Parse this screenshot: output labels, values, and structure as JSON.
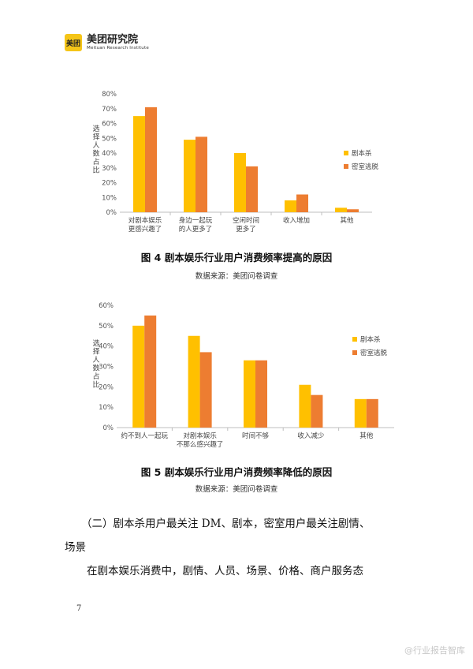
{
  "header": {
    "logo_text": "美团",
    "brand_cn": "美团研究院",
    "brand_en": "Meituan Research Institute"
  },
  "chart_data": [
    {
      "type": "bar",
      "ylabel": "选择人数占比",
      "ylim": [
        0,
        80
      ],
      "y_ticks": [
        "0%",
        "10%",
        "20%",
        "30%",
        "40%",
        "50%",
        "60%",
        "70%",
        "80%"
      ],
      "categories": [
        [
          "对剧本娱乐",
          "更感兴趣了"
        ],
        [
          "身边一起玩",
          "的人更多了"
        ],
        [
          "空闲时间",
          "更多了"
        ],
        [
          "收入增加"
        ],
        [
          "其他"
        ]
      ],
      "series": [
        {
          "name": "剧本杀",
          "color": "#FFC000",
          "values": [
            65,
            49,
            40,
            8,
            3
          ]
        },
        {
          "name": "密室逃脱",
          "color": "#ED7D31",
          "values": [
            71,
            51,
            31,
            12,
            2
          ]
        }
      ],
      "legend": "right"
    },
    {
      "type": "bar",
      "ylabel": "选择人数占比",
      "ylim": [
        0,
        60
      ],
      "y_ticks": [
        "0%",
        "10%",
        "20%",
        "30%",
        "40%",
        "50%",
        "60%"
      ],
      "categories": [
        [
          "约不到人一起玩"
        ],
        [
          "对剧本娱乐",
          "不那么感兴趣了"
        ],
        [
          "时间不够"
        ],
        [
          "收入减少"
        ],
        [
          "其他"
        ]
      ],
      "series": [
        {
          "name": "剧本杀",
          "color": "#FFC000",
          "values": [
            50,
            45,
            33,
            21,
            14
          ]
        },
        {
          "name": "密室逃脱",
          "color": "#ED7D31",
          "values": [
            55,
            37,
            33,
            16,
            14
          ]
        }
      ],
      "legend": "right"
    }
  ],
  "figure4": {
    "caption": "图 4 剧本娱乐行业用户消费频率提高的原因",
    "source": "数据来源：美团问卷调查"
  },
  "figure5": {
    "caption": "图 5 剧本娱乐行业用户消费频率降低的原因",
    "source": "数据来源：美团问卷调查"
  },
  "section": {
    "heading_line1": "（二）剧本杀用户最关注 DM、剧本，密室用户最关注剧情、",
    "heading_line2": "场景",
    "body": "在剧本娱乐消费中，剧情、人员、场景、价格、商户服务态"
  },
  "page_number": "7",
  "watermark": "@行业报告智库"
}
